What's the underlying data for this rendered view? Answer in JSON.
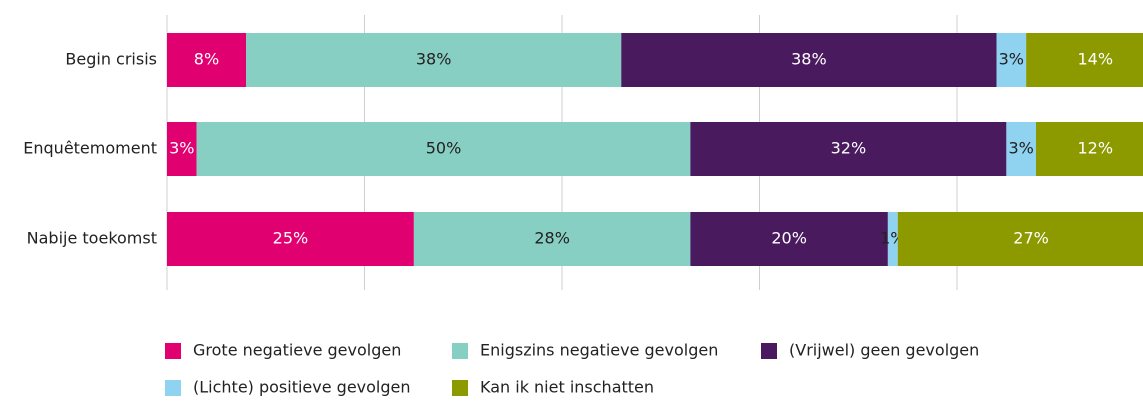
{
  "chart_data": {
    "type": "stacked_barh",
    "categories": [
      "Begin crisis",
      "Enquêtemoment",
      "Nabije toekomst"
    ],
    "series": [
      {
        "name": "Grote negatieve gevolgen",
        "color": "#e0006f",
        "values": [
          8,
          3,
          25
        ],
        "value_labels": [
          "8%",
          "3%",
          "25%"
        ]
      },
      {
        "name": "Enigszins negatieve gevolgen",
        "color": "#88cfc3",
        "values": [
          38,
          50,
          28
        ],
        "value_labels": [
          "38%",
          "50%",
          "28%"
        ]
      },
      {
        "name": "(Vrijwel) geen gevolgen",
        "color": "#4a1a5e",
        "values": [
          38,
          32,
          20
        ],
        "value_labels": [
          "38%",
          "32%",
          "20%"
        ]
      },
      {
        "name": "(Lichte) positieve gevolgen",
        "color": "#8fd3f0",
        "values": [
          3,
          3,
          1
        ],
        "value_labels": [
          "3%",
          "3%",
          "1%"
        ]
      },
      {
        "name": "Kan ik niet inschatten",
        "color": "#8c9a00",
        "values": [
          14,
          12,
          27
        ],
        "value_labels": [
          "14%",
          "12%",
          "27%"
        ]
      }
    ],
    "xlim": [
      0,
      100
    ],
    "xticks": [
      0,
      20,
      40,
      60,
      80,
      100
    ],
    "grid": true
  }
}
